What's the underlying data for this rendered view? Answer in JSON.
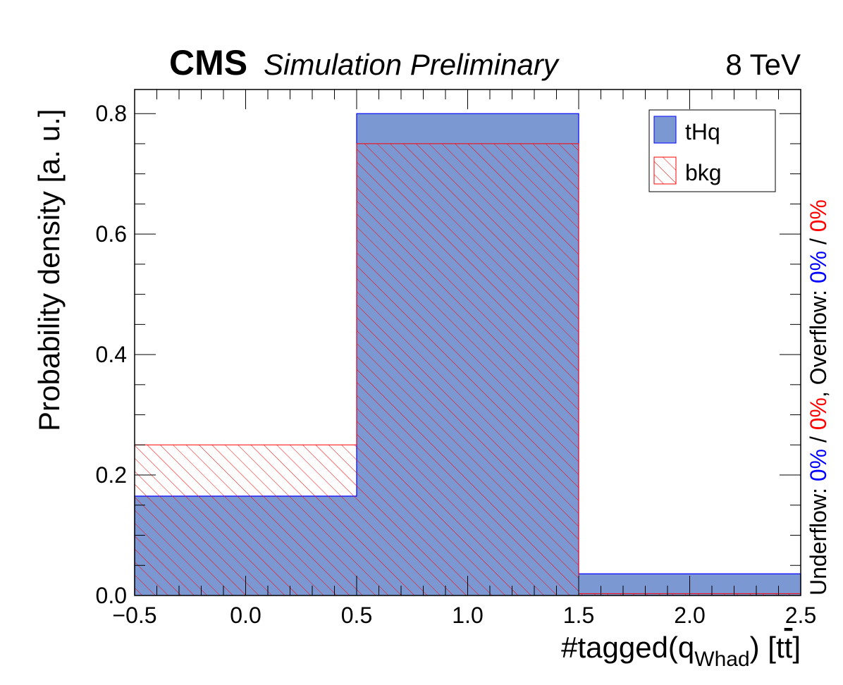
{
  "header": {
    "experiment": "CMS",
    "status": "Simulation Preliminary",
    "energy": "8 TeV"
  },
  "side_note": {
    "underflow_label": "Underflow: ",
    "overflow_label": "Overflow: ",
    "sep": " / ",
    "comma": ",  ",
    "underflow_sig": "0%",
    "underflow_bkg": "0%",
    "overflow_sig": "0%",
    "overflow_bkg": "0%"
  },
  "colors": {
    "signal_fill": "#7b98d3",
    "signal_line": "#0000ff",
    "bkg_line": "#ff0000",
    "signal_text": "#0000ff",
    "bkg_text": "#ff0000"
  },
  "chart_data": {
    "type": "bar",
    "histogram": true,
    "bin_edges": [
      -0.5,
      0.5,
      1.5,
      2.5
    ],
    "series": [
      {
        "name": "tHq",
        "style": "filled",
        "values": [
          0.165,
          0.8,
          0.036
        ]
      },
      {
        "name": "bkg",
        "style": "hatched",
        "values": [
          0.25,
          0.75,
          0.003
        ]
      }
    ],
    "xlabel_main": "#tagged(q",
    "xlabel_sub": "Whad",
    "xlabel_tail": ") [t",
    "xlabel_bar": "t",
    "xlabel_end": "]",
    "ylabel": "Probability density [a. u.]",
    "xlim": [
      -0.5,
      2.5
    ],
    "ylim": [
      0,
      0.84
    ],
    "xticks": [
      -0.5,
      0.0,
      0.5,
      1.0,
      1.5,
      2.0,
      2.5
    ],
    "xtick_labels": [
      "−0.5",
      "0.0",
      "0.5",
      "1.0",
      "1.5",
      "2.0",
      "2.5"
    ],
    "yticks": [
      0.0,
      0.2,
      0.4,
      0.6,
      0.8
    ],
    "ytick_labels": [
      "0.0",
      "0.2",
      "0.4",
      "0.6",
      "0.8"
    ],
    "legend_position": "top-right",
    "grid": false
  }
}
